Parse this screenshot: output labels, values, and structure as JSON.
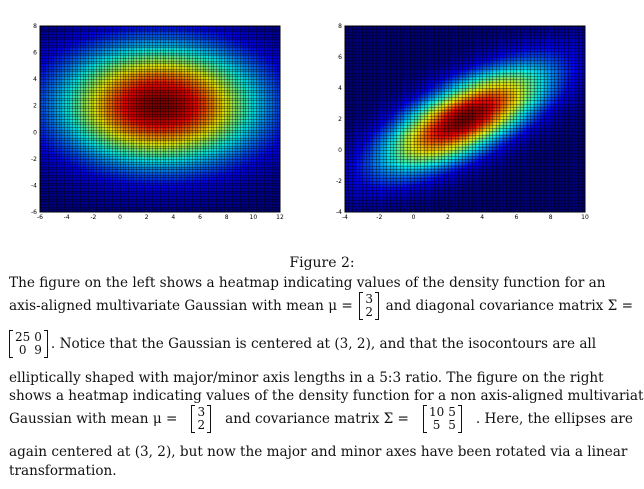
{
  "chart_data": [
    {
      "type": "heatmap",
      "name": "left",
      "mean": [
        3,
        2
      ],
      "cov": [
        [
          25,
          0
        ],
        [
          0,
          9
        ]
      ],
      "xlim": [
        -6,
        12
      ],
      "ylim": [
        -6,
        8
      ],
      "grid_n": [
        90,
        70
      ],
      "xticks": [
        "-6",
        "-4",
        "-2",
        "0",
        "2",
        "4",
        "6",
        "8",
        "10",
        "12"
      ],
      "xtick_values": [
        -6,
        -4,
        -2,
        0,
        2,
        4,
        6,
        8,
        10,
        12
      ],
      "yticks": [
        "-6",
        "-4",
        "-2",
        "0",
        "2",
        "4",
        "6",
        "8"
      ],
      "ytick_values": [
        -6,
        -4,
        -2,
        0,
        2,
        4,
        6,
        8
      ],
      "colormap": "jet",
      "grid": true
    },
    {
      "type": "heatmap",
      "name": "right",
      "mean": [
        3,
        2
      ],
      "cov": [
        [
          10,
          5
        ],
        [
          5,
          5
        ]
      ],
      "xlim": [
        -4,
        10
      ],
      "ylim": [
        -4,
        8
      ],
      "grid_n": [
        70,
        60
      ],
      "xticks": [
        "-4",
        "-2",
        "0",
        "2",
        "4",
        "6",
        "8",
        "10"
      ],
      "xtick_values": [
        -4,
        -2,
        0,
        2,
        4,
        6,
        8,
        10
      ],
      "yticks": [
        "-4",
        "-2",
        "0",
        "2",
        "4",
        "6",
        "8"
      ],
      "ytick_values": [
        -4,
        -2,
        0,
        2,
        4,
        6,
        8
      ],
      "colormap": "jet",
      "grid": true
    }
  ],
  "caption": {
    "title": "Figure 2:",
    "l1": "The figure on the left shows a heatmap indicating values of the density function for an",
    "l2a": "axis-aligned multivariate Gaussian with mean μ =",
    "mu1": [
      "3",
      "2"
    ],
    "l2b": "and diagonal covariance matrix Σ =",
    "sigma1": [
      [
        "25",
        "0"
      ],
      [
        "0",
        "9"
      ]
    ],
    "l3": ". Notice that the Gaussian is centered at (3, 2), and that the isocontours are all",
    "l4": "elliptically shaped with major/minor axis lengths in a 5:3 ratio. The figure on the right",
    "l5": "shows a heatmap indicating values of the density function for a non axis-aligned multivariate",
    "l6a": "Gaussian with mean μ =",
    "mu2": [
      "3",
      "2"
    ],
    "l6b": "and covariance matrix Σ =",
    "sigma2": [
      [
        "10",
        "5"
      ],
      [
        "5",
        "5"
      ]
    ],
    "l6c": ". Here, the ellipses are",
    "l7": "again centered at (3, 2), but now the major and minor axes have been rotated via a linear",
    "l8": "transformation."
  }
}
